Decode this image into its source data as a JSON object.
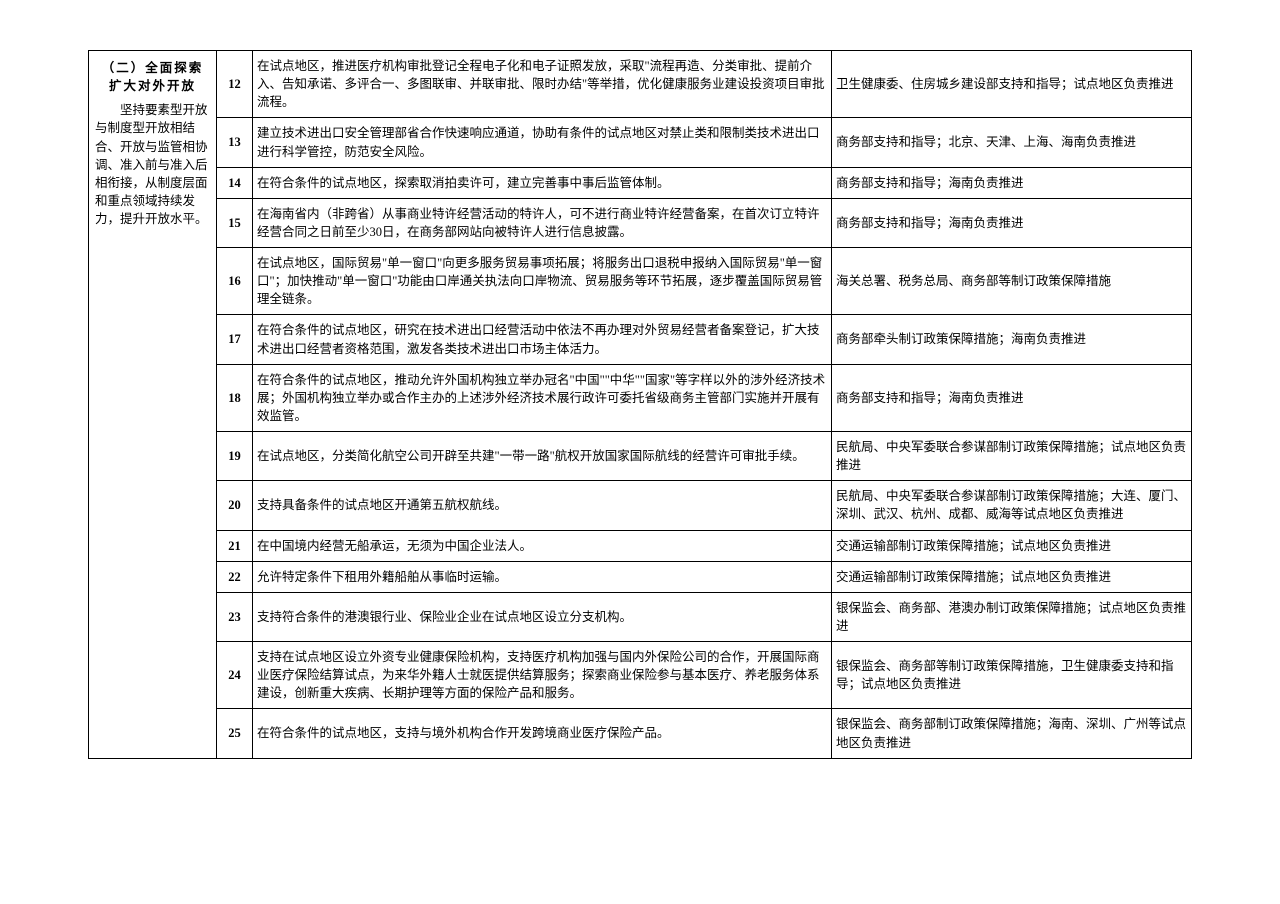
{
  "section": {
    "title": "（二）全面探索扩大对外开放",
    "body": "坚持要素型开放与制度型开放相结合、开放与监管相协调、准入前与准入后相衔接，从制度层面和重点领域持续发力，提升开放水平。"
  },
  "rows": [
    {
      "num": "12",
      "content": "在试点地区，推进医疗机构审批登记全程电子化和电子证照发放，采取\"流程再造、分类审批、提前介入、告知承诺、多评合一、多图联审、并联审批、限时办结\"等举措，优化健康服务业建设投资项目审批流程。",
      "resp": "卫生健康委、住房城乡建设部支持和指导；试点地区负责推进"
    },
    {
      "num": "13",
      "content": "建立技术进出口安全管理部省合作快速响应通道，协助有条件的试点地区对禁止类和限制类技术进出口进行科学管控，防范安全风险。",
      "resp": "商务部支持和指导；北京、天津、上海、海南负责推进"
    },
    {
      "num": "14",
      "content": "在符合条件的试点地区，探索取消拍卖许可，建立完善事中事后监管体制。",
      "resp": "商务部支持和指导；海南负责推进"
    },
    {
      "num": "15",
      "content": "在海南省内（非跨省）从事商业特许经营活动的特许人，可不进行商业特许经营备案，在首次订立特许经营合同之日前至少30日，在商务部网站向被特许人进行信息披露。",
      "resp": "商务部支持和指导；海南负责推进"
    },
    {
      "num": "16",
      "content": "在试点地区，国际贸易\"单一窗口\"向更多服务贸易事项拓展；将服务出口退税申报纳入国际贸易\"单一窗口\"；加快推动\"单一窗口\"功能由口岸通关执法向口岸物流、贸易服务等环节拓展，逐步覆盖国际贸易管理全链条。",
      "resp": "海关总署、税务总局、商务部等制订政策保障措施"
    },
    {
      "num": "17",
      "content": "在符合条件的试点地区，研究在技术进出口经营活动中依法不再办理对外贸易经营者备案登记，扩大技术进出口经营者资格范围，激发各类技术进出口市场主体活力。",
      "resp": "商务部牵头制订政策保障措施；海南负责推进"
    },
    {
      "num": "18",
      "content": "在符合条件的试点地区，推动允许外国机构独立举办冠名\"中国\"\"中华\"\"国家\"等字样以外的涉外经济技术展；外国机构独立举办或合作主办的上述涉外经济技术展行政许可委托省级商务主管部门实施并开展有效监管。",
      "resp": "商务部支持和指导；海南负责推进"
    },
    {
      "num": "19",
      "content": "在试点地区，分类简化航空公司开辟至共建\"一带一路\"航权开放国家国际航线的经营许可审批手续。",
      "resp": "民航局、中央军委联合参谋部制订政策保障措施；试点地区负责推进"
    },
    {
      "num": "20",
      "content": "支持具备条件的试点地区开通第五航权航线。",
      "resp": "民航局、中央军委联合参谋部制订政策保障措施；大连、厦门、深圳、武汉、杭州、成都、威海等试点地区负责推进"
    },
    {
      "num": "21",
      "content": "在中国境内经营无船承运，无须为中国企业法人。",
      "resp": "交通运输部制订政策保障措施；试点地区负责推进"
    },
    {
      "num": "22",
      "content": "允许特定条件下租用外籍船舶从事临时运输。",
      "resp": "交通运输部制订政策保障措施；试点地区负责推进"
    },
    {
      "num": "23",
      "content": "支持符合条件的港澳银行业、保险业企业在试点地区设立分支机构。",
      "resp": "银保监会、商务部、港澳办制订政策保障措施；试点地区负责推进"
    },
    {
      "num": "24",
      "content": "支持在试点地区设立外资专业健康保险机构，支持医疗机构加强与国内外保险公司的合作，开展国际商业医疗保险结算试点，为来华外籍人士就医提供结算服务；探索商业保险参与基本医疗、养老服务体系建设，创新重大疾病、长期护理等方面的保险产品和服务。",
      "resp": "银保监会、商务部等制订政策保障措施，卫生健康委支持和指导；试点地区负责推进"
    },
    {
      "num": "25",
      "content": "在符合条件的试点地区，支持与境外机构合作开发跨境商业医疗保险产品。",
      "resp": "银保监会、商务部制订政策保障措施；海南、深圳、广州等试点地区负责推进"
    }
  ],
  "style": {
    "border_color": "#000000",
    "background_color": "#ffffff",
    "font_size": 12.5,
    "line_height": 1.45,
    "col_widths": {
      "section": 128,
      "num": 36,
      "resp": 360
    }
  }
}
